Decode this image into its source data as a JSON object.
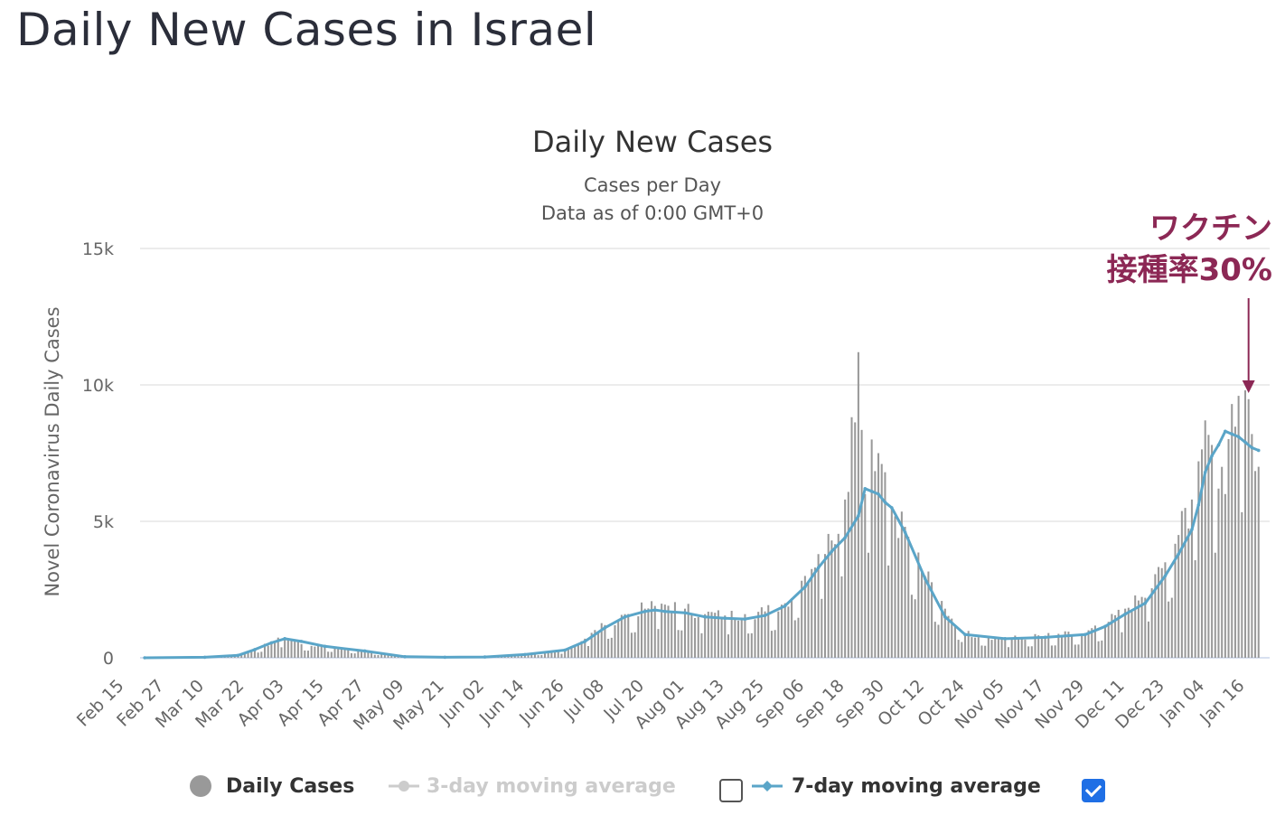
{
  "page": {
    "title": "Daily New Cases in Israel"
  },
  "chart": {
    "title": "Daily New Cases",
    "subtitle_1": "Cases per Day",
    "subtitle_2": "Data as of 0:00 GMT+0",
    "y_axis_label": "Novel Coronavirus Daily Cases",
    "annotation_line1": "ワクチン",
    "annotation_line2": "接種率30%"
  },
  "legend": {
    "daily_cases": "Daily Cases",
    "ma3": "3-day moving average",
    "ma7": "7-day moving average",
    "ma3_checked": false,
    "ma7_checked": true
  },
  "colors": {
    "bars": "#999999",
    "ma7": "#5aa5c8",
    "annotation": "#8c2855",
    "checkbox": "#1f6fe5"
  },
  "chart_data": {
    "type": "bar",
    "title": "Daily New Cases",
    "subtitle": "Cases per Day · Data as of 0:00 GMT+0",
    "ylabel": "Novel Coronavirus Daily Cases",
    "ylim": [
      0,
      15000
    ],
    "y_ticks": [
      "0",
      "5k",
      "10k",
      "15k"
    ],
    "y_tick_values": [
      0,
      5000,
      10000,
      15000
    ],
    "x_ticks": [
      "Feb 15",
      "Feb 27",
      "Mar 10",
      "Mar 22",
      "Apr 03",
      "Apr 15",
      "Apr 27",
      "May 09",
      "May 21",
      "Jun 02",
      "Jun 14",
      "Jun 26",
      "Jul 08",
      "Jul 20",
      "Aug 01",
      "Aug 13",
      "Aug 25",
      "Sep 06",
      "Sep 18",
      "Sep 30",
      "Oct 12",
      "Oct 24",
      "Nov 05",
      "Nov 17",
      "Nov 29",
      "Dec 11",
      "Dec 23",
      "Jan 04",
      "Jan 16"
    ],
    "start_date": "Feb 15",
    "grid": true,
    "series": [
      {
        "name": "Daily Cases",
        "type": "bar",
        "x": [
          "Feb 21",
          "Mar 10",
          "Mar 20",
          "Mar 25",
          "Mar 30",
          "Apr 03",
          "Apr 08",
          "Apr 15",
          "Apr 27",
          "May 09",
          "May 21",
          "Jun 02",
          "Jun 14",
          "Jun 26",
          "Jul 02",
          "Jul 08",
          "Jul 14",
          "Jul 20",
          "Jul 23",
          "Jul 26",
          "Aug 01",
          "Aug 07",
          "Aug 13",
          "Aug 19",
          "Aug 25",
          "Aug 31",
          "Sep 06",
          "Sep 10",
          "Sep 14",
          "Sep 18",
          "Sep 22",
          "Sep 24",
          "Sep 26",
          "Sep 28",
          "Sep 30",
          "Oct 02",
          "Oct 06",
          "Oct 12",
          "Oct 18",
          "Oct 24",
          "Nov 05",
          "Nov 17",
          "Nov 29",
          "Dec 05",
          "Dec 11",
          "Dec 17",
          "Dec 23",
          "Dec 27",
          "Dec 31",
          "Jan 02",
          "Jan 04",
          "Jan 06",
          "Jan 08",
          "Jan 10",
          "Jan 12",
          "Jan 14",
          "Jan 16",
          "Jan 18",
          "Jan 20"
        ],
        "values": [
          0,
          20,
          90,
          300,
          550,
          750,
          500,
          420,
          250,
          40,
          20,
          30,
          120,
          280,
          700,
          1200,
          1600,
          1800,
          1900,
          1950,
          1800,
          1600,
          1550,
          1600,
          1700,
          2000,
          3000,
          3800,
          4300,
          5800,
          11200,
          6000,
          8000,
          7500,
          6800,
          5500,
          4800,
          3000,
          1800,
          900,
          700,
          800,
          900,
          1200,
          1800,
          2200,
          3500,
          4500,
          5800,
          7200,
          8700,
          7800,
          6200,
          6000,
          9300,
          9600,
          9800,
          8200,
          7000
        ]
      },
      {
        "name": "7-day moving average",
        "type": "line",
        "x": [
          "Feb 21",
          "Mar 10",
          "Mar 20",
          "Mar 25",
          "Mar 30",
          "Apr 03",
          "Apr 08",
          "Apr 15",
          "Apr 27",
          "May 09",
          "May 21",
          "Jun 02",
          "Jun 14",
          "Jun 26",
          "Jul 02",
          "Jul 08",
          "Jul 14",
          "Jul 20",
          "Jul 23",
          "Jul 26",
          "Aug 01",
          "Aug 07",
          "Aug 13",
          "Aug 19",
          "Aug 25",
          "Aug 31",
          "Sep 06",
          "Sep 10",
          "Sep 14",
          "Sep 18",
          "Sep 22",
          "Sep 24",
          "Sep 26",
          "Sep 28",
          "Sep 30",
          "Oct 02",
          "Oct 06",
          "Oct 12",
          "Oct 18",
          "Oct 24",
          "Nov 05",
          "Nov 17",
          "Nov 29",
          "Dec 05",
          "Dec 11",
          "Dec 17",
          "Dec 23",
          "Dec 27",
          "Dec 31",
          "Jan 02",
          "Jan 04",
          "Jan 06",
          "Jan 08",
          "Jan 10",
          "Jan 12",
          "Jan 14",
          "Jan 16",
          "Jan 18",
          "Jan 20"
        ],
        "values": [
          0,
          20,
          90,
          300,
          550,
          700,
          600,
          420,
          250,
          40,
          20,
          30,
          120,
          280,
          600,
          1100,
          1500,
          1700,
          1750,
          1700,
          1650,
          1500,
          1450,
          1420,
          1550,
          1900,
          2600,
          3300,
          3900,
          4400,
          5200,
          6200,
          6100,
          6000,
          5700,
          5500,
          4600,
          2900,
          1500,
          850,
          700,
          750,
          850,
          1150,
          1600,
          2000,
          3000,
          3800,
          4700,
          5600,
          6800,
          7400,
          7800,
          8300,
          8200,
          8100,
          7900,
          7700,
          7600
        ]
      }
    ],
    "annotation": {
      "text": "ワクチン 接種率30%",
      "x": "Jan 17",
      "points_to_value": 9700
    }
  }
}
